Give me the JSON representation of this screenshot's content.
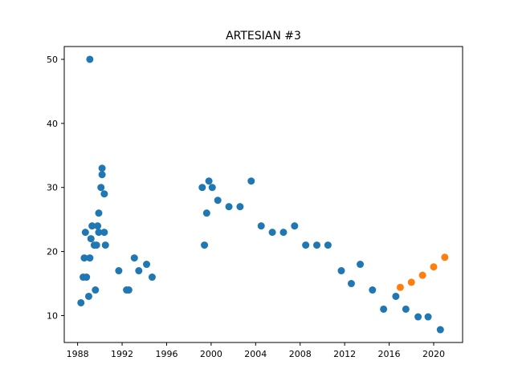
{
  "chart_data": {
    "type": "scatter",
    "title": "ARTESIAN #3",
    "xlabel": "",
    "ylabel": "",
    "xlim": [
      1986.8,
      2022.6
    ],
    "ylim": [
      5.8,
      52.0
    ],
    "x_ticks": [
      1988,
      1992,
      1996,
      2000,
      2004,
      2008,
      2012,
      2016,
      2020
    ],
    "y_ticks": [
      10,
      20,
      30,
      40,
      50
    ],
    "grid": false,
    "legend": "none",
    "series": [
      {
        "color": "#1f77b4",
        "points": [
          [
            1988.3,
            12
          ],
          [
            1988.5,
            16
          ],
          [
            1988.6,
            19
          ],
          [
            1988.7,
            23
          ],
          [
            1988.8,
            16
          ],
          [
            1989.0,
            13
          ],
          [
            1989.1,
            50
          ],
          [
            1989.1,
            19
          ],
          [
            1989.2,
            22
          ],
          [
            1989.3,
            24
          ],
          [
            1989.5,
            21
          ],
          [
            1989.6,
            14
          ],
          [
            1989.7,
            21
          ],
          [
            1989.8,
            24
          ],
          [
            1989.9,
            26
          ],
          [
            1989.9,
            23
          ],
          [
            1990.1,
            30
          ],
          [
            1990.2,
            33
          ],
          [
            1990.2,
            32
          ],
          [
            1990.4,
            23
          ],
          [
            1990.4,
            29
          ],
          [
            1990.5,
            21
          ],
          [
            1991.7,
            17
          ],
          [
            1992.4,
            14
          ],
          [
            1992.6,
            14
          ],
          [
            1993.1,
            19
          ],
          [
            1993.5,
            17
          ],
          [
            1994.2,
            18
          ],
          [
            1994.7,
            16
          ],
          [
            1999.2,
            30
          ],
          [
            1999.4,
            21
          ],
          [
            1999.6,
            26
          ],
          [
            1999.8,
            31
          ],
          [
            2000.1,
            30
          ],
          [
            2000.6,
            28
          ],
          [
            2001.6,
            27
          ],
          [
            2002.6,
            27
          ],
          [
            2003.6,
            31
          ],
          [
            2004.5,
            24
          ],
          [
            2005.5,
            23
          ],
          [
            2006.5,
            23
          ],
          [
            2007.5,
            24
          ],
          [
            2008.5,
            21
          ],
          [
            2009.5,
            21
          ],
          [
            2010.5,
            21
          ],
          [
            2011.7,
            17
          ],
          [
            2012.6,
            15
          ],
          [
            2013.4,
            18
          ],
          [
            2014.5,
            14
          ],
          [
            2015.5,
            11
          ],
          [
            2016.6,
            13
          ],
          [
            2017.5,
            11
          ],
          [
            2018.6,
            9.8
          ],
          [
            2019.5,
            9.8
          ],
          [
            2020.6,
            7.8
          ]
        ]
      },
      {
        "color": "#ff7f0e",
        "points": [
          [
            2017.0,
            14.4
          ],
          [
            2018.0,
            15.2
          ],
          [
            2019.0,
            16.3
          ],
          [
            2020.0,
            17.6
          ],
          [
            2021.0,
            19.1
          ]
        ]
      }
    ]
  }
}
